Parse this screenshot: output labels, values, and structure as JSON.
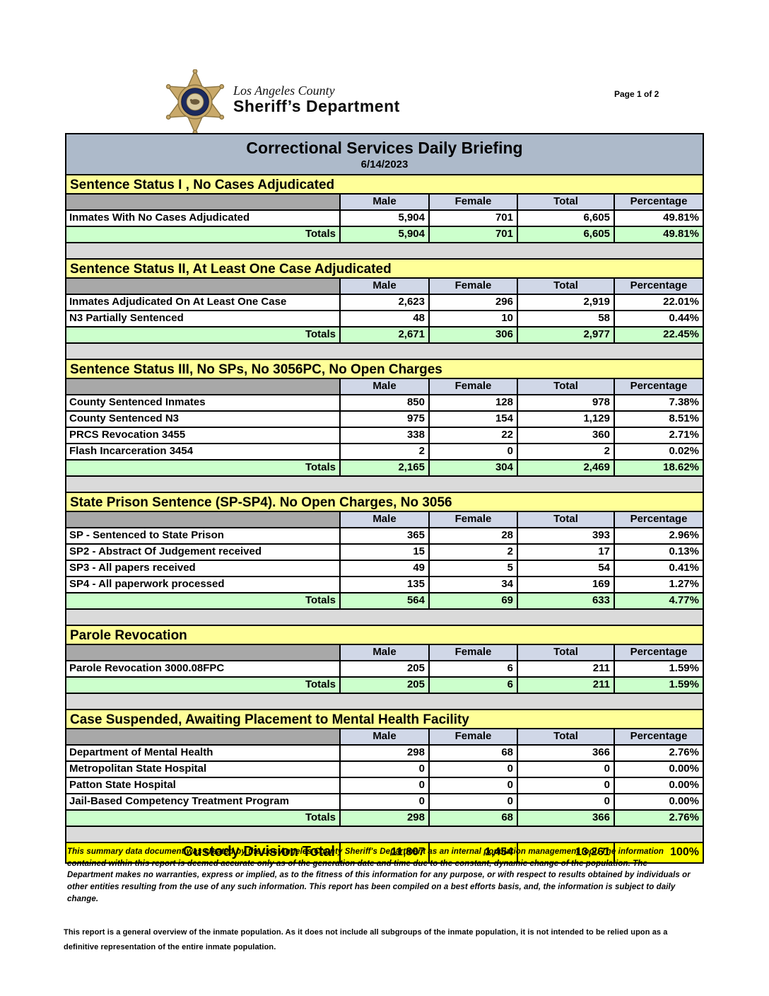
{
  "header": {
    "logo": {
      "county": "Los Angeles County",
      "department": "Sheriff’s Department"
    },
    "page_label": "Page 1 of 2"
  },
  "report": {
    "title": "Correctional Services Daily Briefing",
    "date": "6/14/2023",
    "columns": [
      "Male",
      "Female",
      "Total",
      "Percentage"
    ],
    "totals_label": "Totals",
    "sections": [
      {
        "title": "Sentence Status I , No Cases Adjudicated",
        "rows": [
          {
            "label": "Inmates With No Cases Adjudicated",
            "values": [
              "5,904",
              "701",
              "6,605",
              "49.81%"
            ]
          }
        ],
        "totals": [
          "5,904",
          "701",
          "6,605",
          "49.81%"
        ]
      },
      {
        "title": "Sentence Status II, At Least One Case Adjudicated",
        "rows": [
          {
            "label": "Inmates Adjudicated On At Least One Case",
            "values": [
              "2,623",
              "296",
              "2,919",
              "22.01%"
            ]
          },
          {
            "label": "N3 Partially Sentenced",
            "values": [
              "48",
              "10",
              "58",
              "0.44%"
            ]
          }
        ],
        "totals": [
          "2,671",
          "306",
          "2,977",
          "22.45%"
        ]
      },
      {
        "title": "Sentence Status III, No SPs, No 3056PC, No Open Charges",
        "rows": [
          {
            "label": "County Sentenced Inmates",
            "values": [
              "850",
              "128",
              "978",
              "7.38%"
            ]
          },
          {
            "label": "County Sentenced N3",
            "values": [
              "975",
              "154",
              "1,129",
              "8.51%"
            ]
          },
          {
            "label": "PRCS Revocation 3455",
            "values": [
              "338",
              "22",
              "360",
              "2.71%"
            ]
          },
          {
            "label": "Flash Incarceration 3454",
            "values": [
              "2",
              "0",
              "2",
              "0.02%"
            ]
          }
        ],
        "totals": [
          "2,165",
          "304",
          "2,469",
          "18.62%"
        ]
      },
      {
        "title": "State Prison Sentence (SP-SP4). No Open Charges, No 3056",
        "rows": [
          {
            "label": "SP - Sentenced to State Prison",
            "values": [
              "365",
              "28",
              "393",
              "2.96%"
            ]
          },
          {
            "label": "SP2 - Abstract Of Judgement received",
            "values": [
              "15",
              "2",
              "17",
              "0.13%"
            ]
          },
          {
            "label": "SP3 - All papers received",
            "values": [
              "49",
              "5",
              "54",
              "0.41%"
            ]
          },
          {
            "label": "SP4 - All paperwork processed",
            "values": [
              "135",
              "34",
              "169",
              "1.27%"
            ]
          }
        ],
        "totals": [
          "564",
          "69",
          "633",
          "4.77%"
        ]
      },
      {
        "title": "Parole Revocation",
        "rows": [
          {
            "label": "Parole Revocation 3000.08FPC",
            "values": [
              "205",
              "6",
              "211",
              "1.59%"
            ]
          }
        ],
        "totals": [
          "205",
          "6",
          "211",
          "1.59%"
        ]
      },
      {
        "title": "Case Suspended, Awaiting Placement to Mental Health Facility",
        "rows": [
          {
            "label": "Department of Mental Health",
            "values": [
              "298",
              "68",
              "366",
              "2.76%"
            ]
          },
          {
            "label": "Metropolitan State Hospital",
            "values": [
              "0",
              "0",
              "0",
              "0.00%"
            ]
          },
          {
            "label": "Patton State Hospital",
            "values": [
              "0",
              "0",
              "0",
              "0.00%"
            ]
          },
          {
            "label": "Jail-Based Competency Treatment Program",
            "values": [
              "0",
              "0",
              "0",
              "0.00%"
            ]
          }
        ],
        "totals": [
          "298",
          "68",
          "366",
          "2.76%"
        ]
      }
    ],
    "custody_total": {
      "label": "Custody Division Total",
      "values": [
        "11,807",
        "1,454",
        "13,261",
        "100%"
      ]
    }
  },
  "footer": {
    "disclaimer": "This summary data document was created by the Los Angeles County Sheriff's Department as an internal population management tool.  The information contained within this report is deemed accurate only as of the generation date and time due to the constant, dynamic change of the population.  The Department makes no warranties, express or implied, as to the fitness of this information for any purpose, or with respect to results obtained by individuals or other entities resulting from the use of any such information.  This report has been compiled on a best efforts basis, and, the information is subject to daily change.",
    "note": "This report is a general overview of the inmate population.  As it does not include all subgroups of the inmate population, it is not intended to be relied upon as a definitive representation of the entire inmate population."
  },
  "colors": {
    "title_bar": "#adbaca",
    "section_header": "#ffff99",
    "column_header": "#d0d7e7",
    "totals_row": "#ccffcc",
    "custody_row": "#ffff00",
    "gap_fill": "#dadada",
    "corner_gray": "#a8a8a8"
  }
}
